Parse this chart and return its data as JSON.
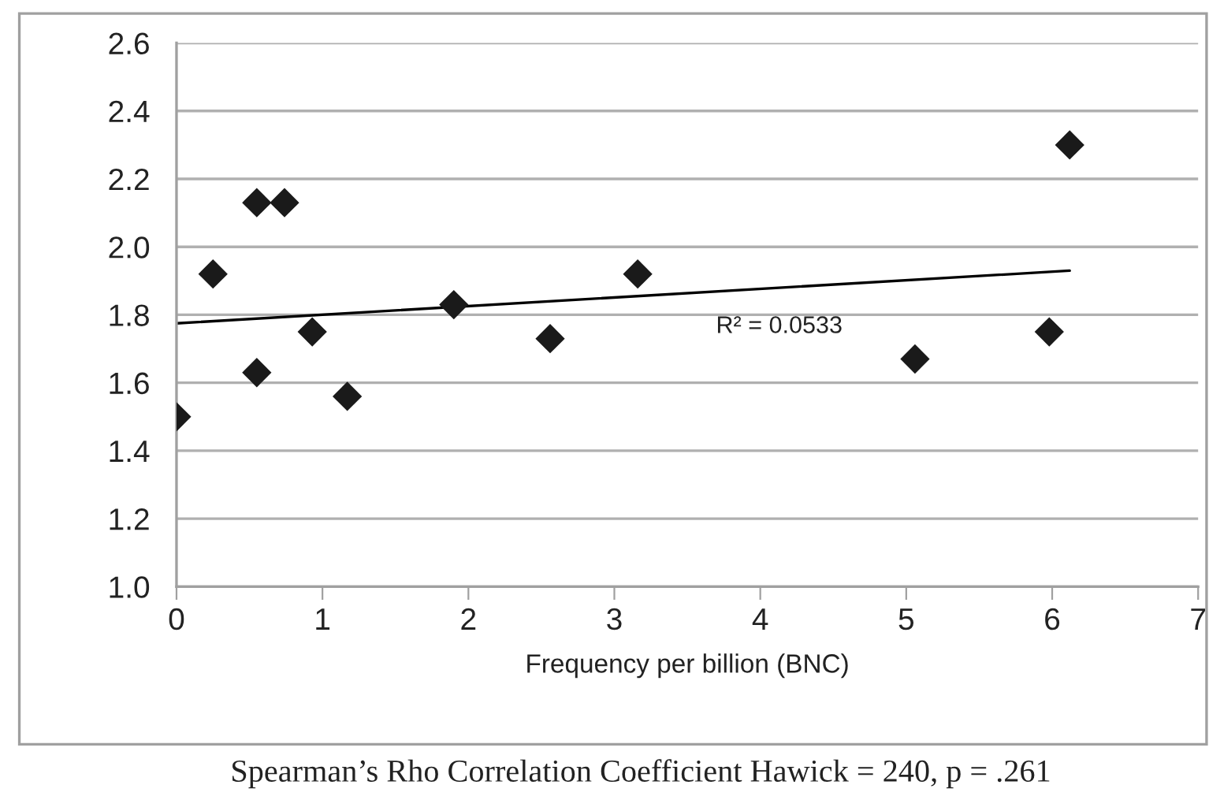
{
  "chart_data": {
    "type": "scatter",
    "xlabel": "Frequency per billion (BNC)",
    "xlim": [
      0,
      7
    ],
    "xticks": [
      0,
      1,
      2,
      3,
      4,
      5,
      6,
      7
    ],
    "ylim": [
      1.0,
      2.6
    ],
    "yticks": [
      {
        "value": 1.0,
        "label": "1.0"
      },
      {
        "value": 1.2,
        "label": "1.2"
      },
      {
        "value": 1.4,
        "label": "1.4"
      },
      {
        "value": 1.6,
        "label": "1.6"
      },
      {
        "value": 1.8,
        "label": "1.8"
      },
      {
        "value": 2.0,
        "label": "2.0"
      },
      {
        "value": 2.2,
        "label": "2.2"
      },
      {
        "value": 2.4,
        "label": "2.4"
      },
      {
        "value": 2.6,
        "label": "2.6"
      }
    ],
    "grid": "y",
    "marker": "diamond",
    "series": [
      {
        "color": "#1a1a1a",
        "x": [
          0.0,
          0.25,
          0.55,
          0.74,
          0.55,
          0.93,
          1.17,
          1.9,
          2.56,
          3.16,
          5.06,
          5.98,
          6.12
        ],
        "values": [
          1.5,
          1.92,
          2.13,
          2.13,
          1.63,
          1.75,
          1.56,
          1.83,
          1.73,
          1.92,
          1.67,
          1.75,
          2.3
        ]
      },
      {
        "type": "line",
        "marker": "none",
        "color": "#000000",
        "x": [
          0,
          6.12
        ],
        "values": [
          1.775,
          1.93
        ]
      }
    ],
    "annotations": [
      "R² = 0.0533",
      "Spearman’s Rho Correlation Coefficient Hawick = 240, p = .261"
    ]
  }
}
